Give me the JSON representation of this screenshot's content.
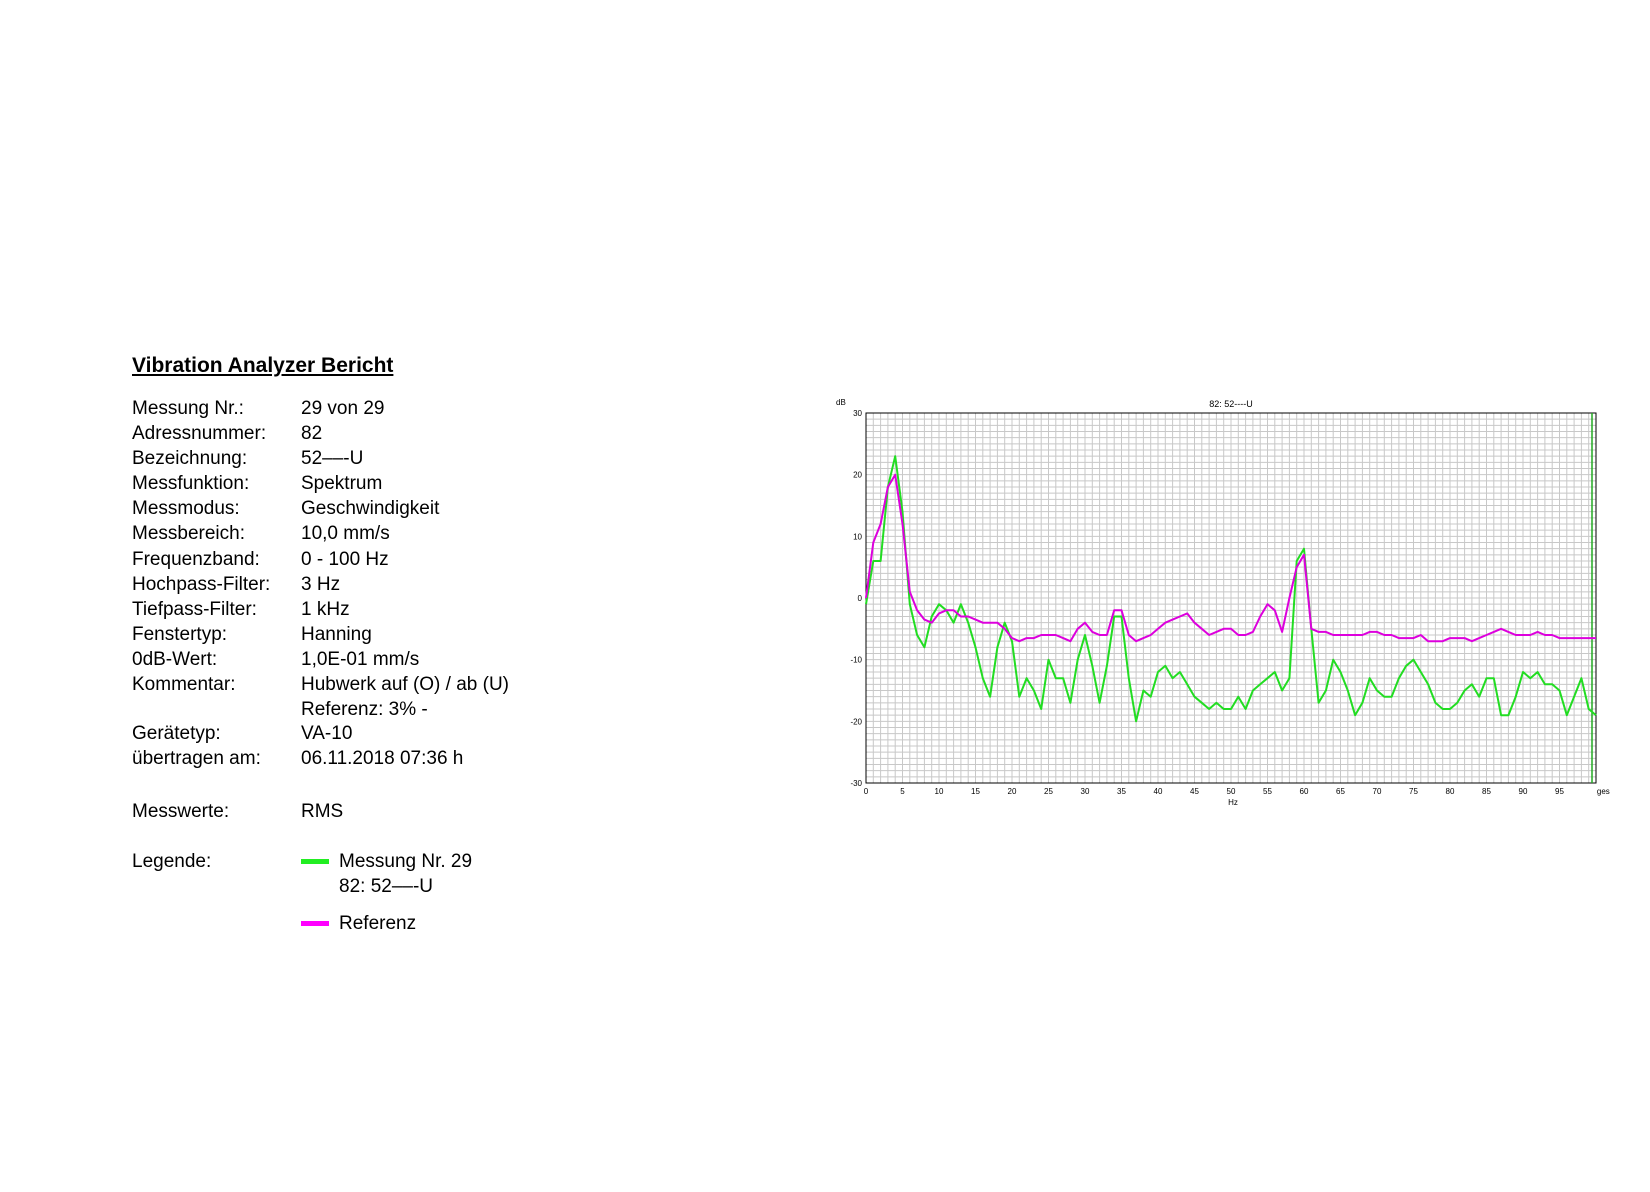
{
  "report": {
    "title": "Vibration Analyzer Bericht",
    "fields": [
      {
        "label": "Messung Nr.:",
        "value": "29 von 29"
      },
      {
        "label": "Adressnummer:",
        "value": "82"
      },
      {
        "label": "Bezeichnung:",
        "value": "52––-U"
      },
      {
        "label": "Messfunktion:",
        "value": "Spektrum"
      },
      {
        "label": "Messmodus:",
        "value": "Geschwindigkeit"
      },
      {
        "label": "Messbereich:",
        "value": "10,0 mm/s"
      },
      {
        "label": "Frequenzband:",
        "value": "0 - 100 Hz"
      },
      {
        "label": "Hochpass-Filter:",
        "value": "3 Hz"
      },
      {
        "label": "Tiefpass-Filter:",
        "value": "1 kHz"
      },
      {
        "label": "Fenstertyp:",
        "value": "Hanning"
      },
      {
        "label": "0dB-Wert:",
        "value": "1,0E-01 mm/s"
      },
      {
        "label": "Kommentar:",
        "value": "Hubwerk auf (O) / ab (U)"
      },
      {
        "label": "",
        "value": "Referenz: 3% -"
      },
      {
        "label": "Gerätetyp:",
        "value": "VA-10"
      },
      {
        "label": "übertragen am:",
        "value": "06.11.2018  07:36 h"
      }
    ],
    "messwerte": {
      "label": "Messwerte:",
      "value": "RMS"
    },
    "legend": {
      "label": "Legende:",
      "measurement": {
        "line1": "Messung Nr. 29",
        "line2": "82: 52––-U",
        "color": "#22ee22"
      },
      "reference": {
        "text": "Referenz",
        "color": "#ff00ff"
      }
    }
  },
  "chart_data": {
    "type": "line",
    "title": "82: 52----U",
    "xlabel": "Hz",
    "ylabel": "dB",
    "xlim": [
      0,
      100
    ],
    "ylim": [
      -30,
      30
    ],
    "x_ticks": [
      "0",
      "5",
      "10",
      "15",
      "20",
      "25",
      "30",
      "35",
      "40",
      "45",
      "50",
      "55",
      "60",
      "65",
      "70",
      "75",
      "80",
      "85",
      "90",
      "95"
    ],
    "x_extra_label": "gesamt",
    "y_ticks": [
      30,
      20,
      10,
      0,
      -10,
      -20,
      -30
    ],
    "grid": true,
    "series": [
      {
        "name": "Messung Nr. 29",
        "color": "#22dd22",
        "x": [
          0,
          1,
          2,
          3,
          4,
          5,
          6,
          7,
          8,
          9,
          10,
          11,
          12,
          13,
          14,
          15,
          16,
          17,
          18,
          19,
          20,
          21,
          22,
          23,
          24,
          25,
          26,
          27,
          28,
          29,
          30,
          31,
          32,
          33,
          34,
          35,
          36,
          37,
          38,
          39,
          40,
          41,
          42,
          43,
          44,
          45,
          46,
          47,
          48,
          49,
          50,
          51,
          52,
          53,
          54,
          55,
          56,
          57,
          58,
          59,
          60,
          61,
          62,
          63,
          64,
          65,
          66,
          67,
          68,
          69,
          70,
          71,
          72,
          73,
          74,
          75,
          76,
          77,
          78,
          79,
          80,
          81,
          82,
          83,
          84,
          85,
          86,
          87,
          88,
          89,
          90,
          91,
          92,
          93,
          94,
          95,
          96,
          97,
          98,
          99,
          100
        ],
        "y": [
          -1,
          6,
          6,
          18,
          23,
          14,
          -1,
          -6,
          -8,
          -3,
          -1,
          -2,
          -4,
          -1,
          -4,
          -8,
          -13,
          -16,
          -8,
          -4,
          -7,
          -16,
          -13,
          -15,
          -18,
          -10,
          -13,
          -13,
          -17,
          -10,
          -6,
          -11,
          -17,
          -11,
          -3,
          -3,
          -13,
          -20,
          -15,
          -16,
          -12,
          -11,
          -13,
          -12,
          -14,
          -16,
          -17,
          -18,
          -17,
          -18,
          -18,
          -16,
          -18,
          -15,
          -14,
          -13,
          -12,
          -15,
          -13,
          6,
          8,
          -5,
          -17,
          -15,
          -10,
          -12,
          -15,
          -19,
          -17,
          -13,
          -15,
          -16,
          -16,
          -13,
          -11,
          -10,
          -12,
          -14,
          -17,
          -18,
          -18,
          -17,
          -15,
          -14,
          -16,
          -13,
          -13,
          -19,
          -19,
          -16,
          -12,
          -13,
          -12,
          -14,
          -14,
          -15,
          -19,
          -16,
          -13,
          -18,
          -19
        ]
      },
      {
        "name": "Referenz",
        "color": "#dd00dd",
        "x": [
          0,
          1,
          2,
          3,
          4,
          5,
          6,
          7,
          8,
          9,
          10,
          11,
          12,
          13,
          14,
          15,
          16,
          17,
          18,
          19,
          20,
          21,
          22,
          23,
          24,
          25,
          26,
          27,
          28,
          29,
          30,
          31,
          32,
          33,
          34,
          35,
          36,
          37,
          38,
          39,
          40,
          41,
          42,
          43,
          44,
          45,
          46,
          47,
          48,
          49,
          50,
          51,
          52,
          53,
          54,
          55,
          56,
          57,
          58,
          59,
          60,
          61,
          62,
          63,
          64,
          65,
          66,
          67,
          68,
          69,
          70,
          71,
          72,
          73,
          74,
          75,
          76,
          77,
          78,
          79,
          80,
          81,
          82,
          83,
          84,
          85,
          86,
          87,
          88,
          89,
          90,
          91,
          92,
          93,
          94,
          95,
          96,
          97,
          98,
          99,
          100
        ],
        "y": [
          0,
          9,
          12,
          18,
          20,
          12,
          1,
          -2,
          -3.5,
          -4,
          -2.5,
          -2,
          -2,
          -3,
          -3,
          -3.5,
          -4,
          -4,
          -4,
          -5,
          -6.5,
          -7,
          -6.5,
          -6.5,
          -6,
          -6,
          -6,
          -6.5,
          -7,
          -5,
          -4,
          -5.5,
          -6,
          -6,
          -2,
          -2,
          -6,
          -7,
          -6.5,
          -6,
          -5,
          -4,
          -3.5,
          -3,
          -2.5,
          -4,
          -5,
          -6,
          -5.5,
          -5,
          -5,
          -6,
          -6,
          -5.5,
          -3,
          -1,
          -2,
          -5.5,
          0,
          5,
          7,
          -5,
          -5.5,
          -5.5,
          -6,
          -6,
          -6,
          -6,
          -6,
          -5.5,
          -5.5,
          -6,
          -6,
          -6.5,
          -6.5,
          -6.5,
          -6,
          -7,
          -7,
          -7,
          -6.5,
          -6.5,
          -6.5,
          -7,
          -6.5,
          -6,
          -5.5,
          -5,
          -5.5,
          -6,
          -6,
          -6,
          -5.5,
          -6,
          -6,
          -6.5,
          -6.5,
          -6.5,
          -6.5,
          -6.5,
          -6.5
        ]
      }
    ]
  }
}
